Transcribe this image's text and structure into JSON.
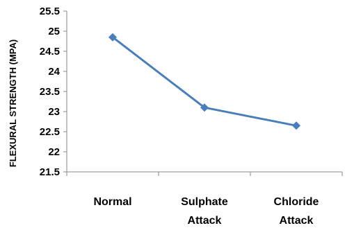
{
  "chart_data": {
    "type": "line",
    "categories": [
      "Normal",
      "Sulphate Attack",
      "Chloride Attack"
    ],
    "category_lines": [
      [
        "Normal"
      ],
      [
        "Sulphate",
        "Attack"
      ],
      [
        "Chloride",
        "Attack"
      ]
    ],
    "series": [
      {
        "name": "",
        "values": [
          24.85,
          23.1,
          22.65
        ],
        "color": "#4a7ebb",
        "marker": "diamond"
      }
    ],
    "title": "",
    "xlabel": "",
    "ylabel": "FLEXURAL STRENGTH (MPA)",
    "ylim": [
      21.5,
      25.5
    ],
    "yticks": [
      21.5,
      22,
      22.5,
      23,
      23.5,
      24,
      24.5,
      25,
      25.5
    ],
    "ytick_labels": [
      "21.5",
      "22",
      "22.5",
      "23",
      "23.5",
      "24",
      "24.5",
      "25",
      "25.5"
    ],
    "grid": false,
    "legend": "none"
  }
}
